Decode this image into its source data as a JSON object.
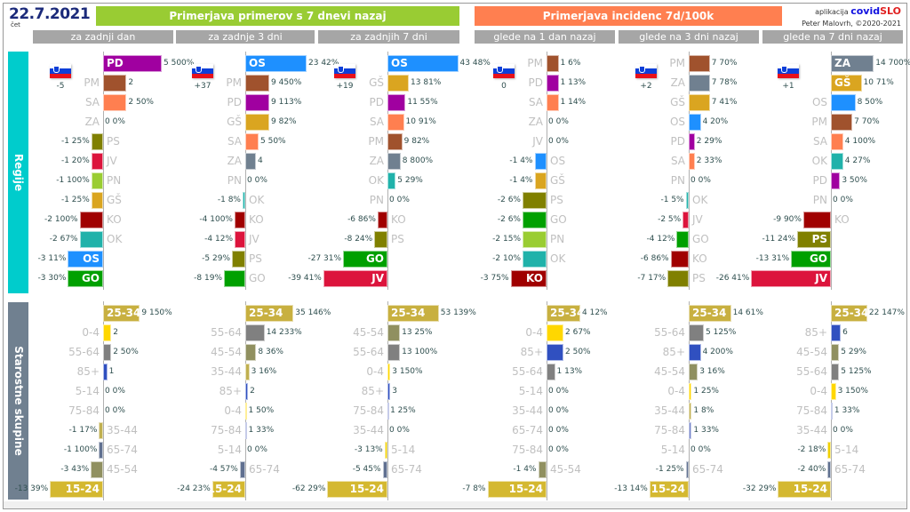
{
  "header": {
    "date": "22.7.2021",
    "weekday": "čet",
    "group1_title": "Primerjava primerov s 7 dnevi nazaj",
    "group2_title": "Primerjava incidenc 7d/100k",
    "subheaders": [
      "za zadnji dan",
      "za zadnje 3 dni",
      "za zadnjih 7 dni",
      "glede na 1 dan nazaj",
      "glede na 3 dni nazaj",
      "glede na 7 dni nazaj"
    ],
    "brand_prefix": "aplikacija",
    "brand_covid": "covid",
    "brand_slo": "SLO",
    "author": "Peter Malovrh, ©2020-2021"
  },
  "sections": {
    "regions_label": "Regije",
    "age_label": "Starostne skupine"
  },
  "colors": {
    "green_header": "#99cc33",
    "orange_header": "#ff7f50",
    "subheader": "#a6a6a6",
    "regions_band": "#00cccc",
    "age_band": "#708090",
    "PD": "#a000a0",
    "PM": "#a0522d",
    "SA": "#ff7f50",
    "ZA": "#708090",
    "PS": "#808000",
    "JV": "#dc143c",
    "PN": "#9acd32",
    "GŠ": "#daa520",
    "KO": "#a00000",
    "OK": "#20b2aa",
    "OS": "#1e90ff",
    "GO": "#00a000",
    "25-34": "#c8b040",
    "0-4": "#ffd700",
    "55-64": "#808080",
    "85+": "#3050c0",
    "5-14": "#f0d000",
    "75-84": "#7080c8",
    "35-44": "#c0b050",
    "65-74": "#607090",
    "45-54": "#909060",
    "15-24": "#d4b830"
  },
  "chart_data": [
    {
      "type": "bar",
      "title": "za zadnji dan",
      "group": "Primerjava primerov s 7 dnevi nazaj",
      "section": "Regije",
      "slovenia_change": "-5",
      "categories": [
        "PD",
        "PM",
        "SA",
        "ZA",
        "PS",
        "JV",
        "PN",
        "GŠ",
        "KO",
        "OK",
        "OS",
        "GO"
      ],
      "values": [
        5,
        2,
        2,
        0,
        -1,
        -1,
        -1,
        -1,
        -2,
        -2,
        -3,
        -3
      ],
      "labels": [
        "5 500%",
        "2",
        "2 50%",
        "0 0%",
        "-1 25%",
        "-1 20%",
        "-1 100%",
        "-1 25%",
        "-2 100%",
        "-2 67%",
        "-3 11%",
        "-3 30%"
      ]
    },
    {
      "type": "bar",
      "title": "za zadnje 3 dni",
      "group": "Primerjava primerov s 7 dnevi nazaj",
      "section": "Regije",
      "slovenia_change": "+37",
      "categories": [
        "OS",
        "PM",
        "PD",
        "GŠ",
        "SA",
        "ZA",
        "PN",
        "OK",
        "KO",
        "JV",
        "PS",
        "GO"
      ],
      "values": [
        23,
        9,
        9,
        9,
        5,
        4,
        0,
        -1,
        -4,
        -4,
        -5,
        -8
      ],
      "labels": [
        "23 42%",
        "9 450%",
        "9 113%",
        "9 82%",
        "5 50%",
        "4",
        "0 0%",
        "-1 8%",
        "-4 100%",
        "-4 12%",
        "-5 29%",
        "-8 19%"
      ]
    },
    {
      "type": "bar",
      "title": "za zadnjih 7 dni",
      "group": "Primerjava primerov s 7 dnevi nazaj",
      "section": "Regije",
      "slovenia_change": "+19",
      "categories": [
        "OS",
        "GŠ",
        "PD",
        "SA",
        "PM",
        "ZA",
        "OK",
        "PN",
        "KO",
        "PS",
        "GO",
        "JV"
      ],
      "values": [
        43,
        13,
        11,
        10,
        9,
        8,
        5,
        0,
        -6,
        -8,
        -27,
        -39
      ],
      "labels": [
        "43 48%",
        "13 81%",
        "11 55%",
        "10 91%",
        "9 82%",
        "8 800%",
        "5 29%",
        "0 0%",
        "-6 86%",
        "-8 24%",
        "-27 31%",
        "-39 41%"
      ]
    },
    {
      "type": "bar",
      "title": "glede na 1 dan nazaj",
      "group": "Primerjava incidenc 7d/100k",
      "section": "Regije",
      "slovenia_change": "0",
      "categories": [
        "PM",
        "PD",
        "SA",
        "ZA",
        "JV",
        "OS",
        "GŠ",
        "PS",
        "GO",
        "PN",
        "OK",
        "KO"
      ],
      "values": [
        1,
        1,
        1,
        0,
        0,
        -1,
        -1,
        -2,
        -2,
        -2,
        -2,
        -3
      ],
      "labels": [
        "1 6%",
        "1 13%",
        "1 14%",
        "0 0%",
        "0 0%",
        "-1 4%",
        "-1 4%",
        "-2 6%",
        "-2 6%",
        "-2 15%",
        "-2 10%",
        "-3 75%"
      ]
    },
    {
      "type": "bar",
      "title": "glede na 3 dni nazaj",
      "group": "Primerjava incidenc 7d/100k",
      "section": "Regije",
      "slovenia_change": "+2",
      "categories": [
        "PM",
        "ZA",
        "GŠ",
        "OS",
        "PD",
        "SA",
        "PN",
        "OK",
        "JV",
        "GO",
        "KO",
        "PS"
      ],
      "values": [
        7,
        7,
        7,
        4,
        2,
        2,
        0,
        -1,
        -2,
        -4,
        -6,
        -7
      ],
      "labels": [
        "7 70%",
        "7 78%",
        "7 41%",
        "4 20%",
        "2 29%",
        "2 33%",
        "0 0%",
        "-1 5%",
        "-2 5%",
        "-4 12%",
        "-6 86%",
        "-7 17%"
      ]
    },
    {
      "type": "bar",
      "title": "glede na 7 dni nazaj",
      "group": "Primerjava incidenc 7d/100k",
      "section": "Regije",
      "slovenia_change": "+1",
      "categories": [
        "ZA",
        "GŠ",
        "OS",
        "PM",
        "SA",
        "OK",
        "PD",
        "PN",
        "KO",
        "PS",
        "GO",
        "JV"
      ],
      "values": [
        14,
        10,
        8,
        7,
        4,
        4,
        3,
        0,
        -9,
        -11,
        -13,
        -26
      ],
      "labels": [
        "14 700%",
        "10 71%",
        "8 50%",
        "7 70%",
        "4 100%",
        "4 27%",
        "3 50%",
        "0 0%",
        "-9 90%",
        "-11 24%",
        "-13 31%",
        "-26 41%"
      ]
    },
    {
      "type": "bar",
      "title": "za zadnji dan",
      "group": "Primerjava primerov s 7 dnevi nazaj",
      "section": "Starostne skupine",
      "categories": [
        "25-34",
        "0-4",
        "55-64",
        "85+",
        "5-14",
        "75-84",
        "35-44",
        "65-74",
        "45-54",
        "15-24"
      ],
      "values": [
        9,
        2,
        2,
        1,
        0,
        0,
        -1,
        -1,
        -3,
        -13
      ],
      "labels": [
        "9 150%",
        "2",
        "2 50%",
        "1",
        "0 0%",
        "0 0%",
        "-1 17%",
        "-1 100%",
        "-3 43%",
        "-13 39%"
      ]
    },
    {
      "type": "bar",
      "title": "za zadnje 3 dni",
      "group": "Primerjava primerov s 7 dnevi nazaj",
      "section": "Starostne skupine",
      "categories": [
        "25-34",
        "55-64",
        "45-54",
        "35-44",
        "85+",
        "0-4",
        "75-84",
        "5-14",
        "65-74",
        "15-24"
      ],
      "values": [
        35,
        14,
        8,
        3,
        2,
        1,
        1,
        0,
        -4,
        -24
      ],
      "labels": [
        "35 146%",
        "14 233%",
        "8 36%",
        "3 16%",
        "2",
        "1 50%",
        "1 33%",
        "0 0%",
        "-4 57%",
        "-24 23%"
      ]
    },
    {
      "type": "bar",
      "title": "za zadnjih 7 dni",
      "group": "Primerjava primerov s 7 dnevi nazaj",
      "section": "Starostne skupine",
      "categories": [
        "25-34",
        "45-54",
        "55-64",
        "0-4",
        "85+",
        "75-84",
        "35-44",
        "5-14",
        "65-74",
        "15-24"
      ],
      "values": [
        53,
        13,
        13,
        3,
        3,
        1,
        0,
        -3,
        -5,
        -62
      ],
      "labels": [
        "53 139%",
        "13 25%",
        "13 100%",
        "3 150%",
        "3",
        "1 25%",
        "0 0%",
        "-3 13%",
        "-5 45%",
        "-62 29%"
      ]
    },
    {
      "type": "bar",
      "title": "glede na 1 dan nazaj",
      "group": "Primerjava incidenc 7d/100k",
      "section": "Starostne skupine",
      "categories": [
        "25-34",
        "0-4",
        "85+",
        "55-64",
        "5-14",
        "35-44",
        "65-74",
        "75-84",
        "45-54",
        "15-24"
      ],
      "values": [
        4,
        2,
        2,
        1,
        0,
        0,
        0,
        0,
        -1,
        -7
      ],
      "labels": [
        "4 12%",
        "2 67%",
        "2 50%",
        "1 13%",
        "0 0%",
        "0 0%",
        "0 0%",
        "0 0%",
        "-1 4%",
        "-7 8%"
      ]
    },
    {
      "type": "bar",
      "title": "glede na 3 dni nazaj",
      "group": "Primerjava incidenc 7d/100k",
      "section": "Starostne skupine",
      "categories": [
        "25-34",
        "55-64",
        "85+",
        "45-54",
        "0-4",
        "35-44",
        "75-84",
        "5-14",
        "65-74",
        "15-24"
      ],
      "values": [
        14,
        5,
        4,
        3,
        1,
        1,
        1,
        0,
        -1,
        -13
      ],
      "labels": [
        "14 61%",
        "5 125%",
        "4 200%",
        "3 16%",
        "1 25%",
        "1 8%",
        "1 33%",
        "0 0%",
        "-1 25%",
        "-13 14%"
      ]
    },
    {
      "type": "bar",
      "title": "glede na 7 dni nazaj",
      "group": "Primerjava incidenc 7d/100k",
      "section": "Starostne skupine",
      "categories": [
        "25-34",
        "85+",
        "45-54",
        "55-64",
        "0-4",
        "75-84",
        "35-44",
        "5-14",
        "65-74",
        "15-24"
      ],
      "values": [
        22,
        6,
        5,
        5,
        3,
        1,
        0,
        -2,
        -2,
        -32
      ],
      "labels": [
        "22 147%",
        "6",
        "5 29%",
        "5 125%",
        "3 150%",
        "1 33%",
        "0 0%",
        "-2 18%",
        "-2 40%",
        "-32 29%"
      ]
    }
  ]
}
